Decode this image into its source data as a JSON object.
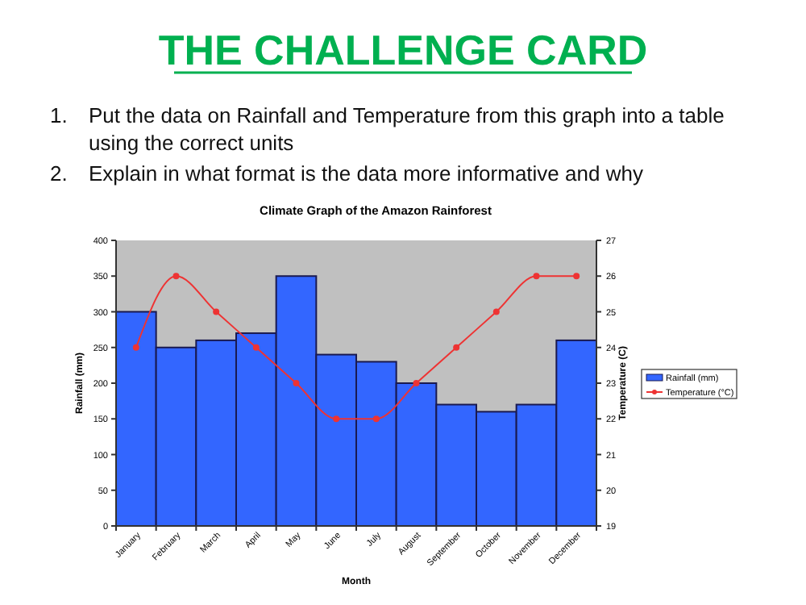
{
  "chart_data": {
    "type": "bar",
    "title": "Climate Graph of the Amazon Rainforest",
    "annotations": [
      "THE CHALLENGE CARD",
      "1. Put the data on Rainfall and Temperature from this graph into a table using the correct units",
      "2. Explain in what format is the data more informative and why"
    ],
    "categories": [
      "January",
      "February",
      "March",
      "April",
      "May",
      "June",
      "July",
      "August",
      "September",
      "October",
      "November",
      "December"
    ],
    "series": [
      {
        "name": "Rainfall (mm)",
        "color": "#3366ff",
        "values": [
          300,
          250,
          260,
          270,
          350,
          240,
          230,
          200,
          170,
          160,
          170,
          260
        ]
      },
      {
        "name": "Temperature (°C)",
        "type": "line",
        "axis": "y2",
        "color": "#ee3333",
        "marker": "circle",
        "values": [
          24,
          26,
          25,
          24,
          23,
          22,
          22,
          23,
          24,
          25,
          26,
          26
        ]
      }
    ],
    "xlabel": "Month",
    "ylabel": "Rainfall (mm)",
    "y2label": "Temperature (C)",
    "ylim": [
      0,
      400
    ],
    "yticks": [
      0,
      50,
      100,
      150,
      200,
      250,
      300,
      350,
      400
    ],
    "y2lim": [
      19,
      27
    ],
    "y2ticks": [
      19,
      20,
      21,
      22,
      23,
      24,
      25,
      26,
      27
    ],
    "legend": "right",
    "grid": false
  }
}
